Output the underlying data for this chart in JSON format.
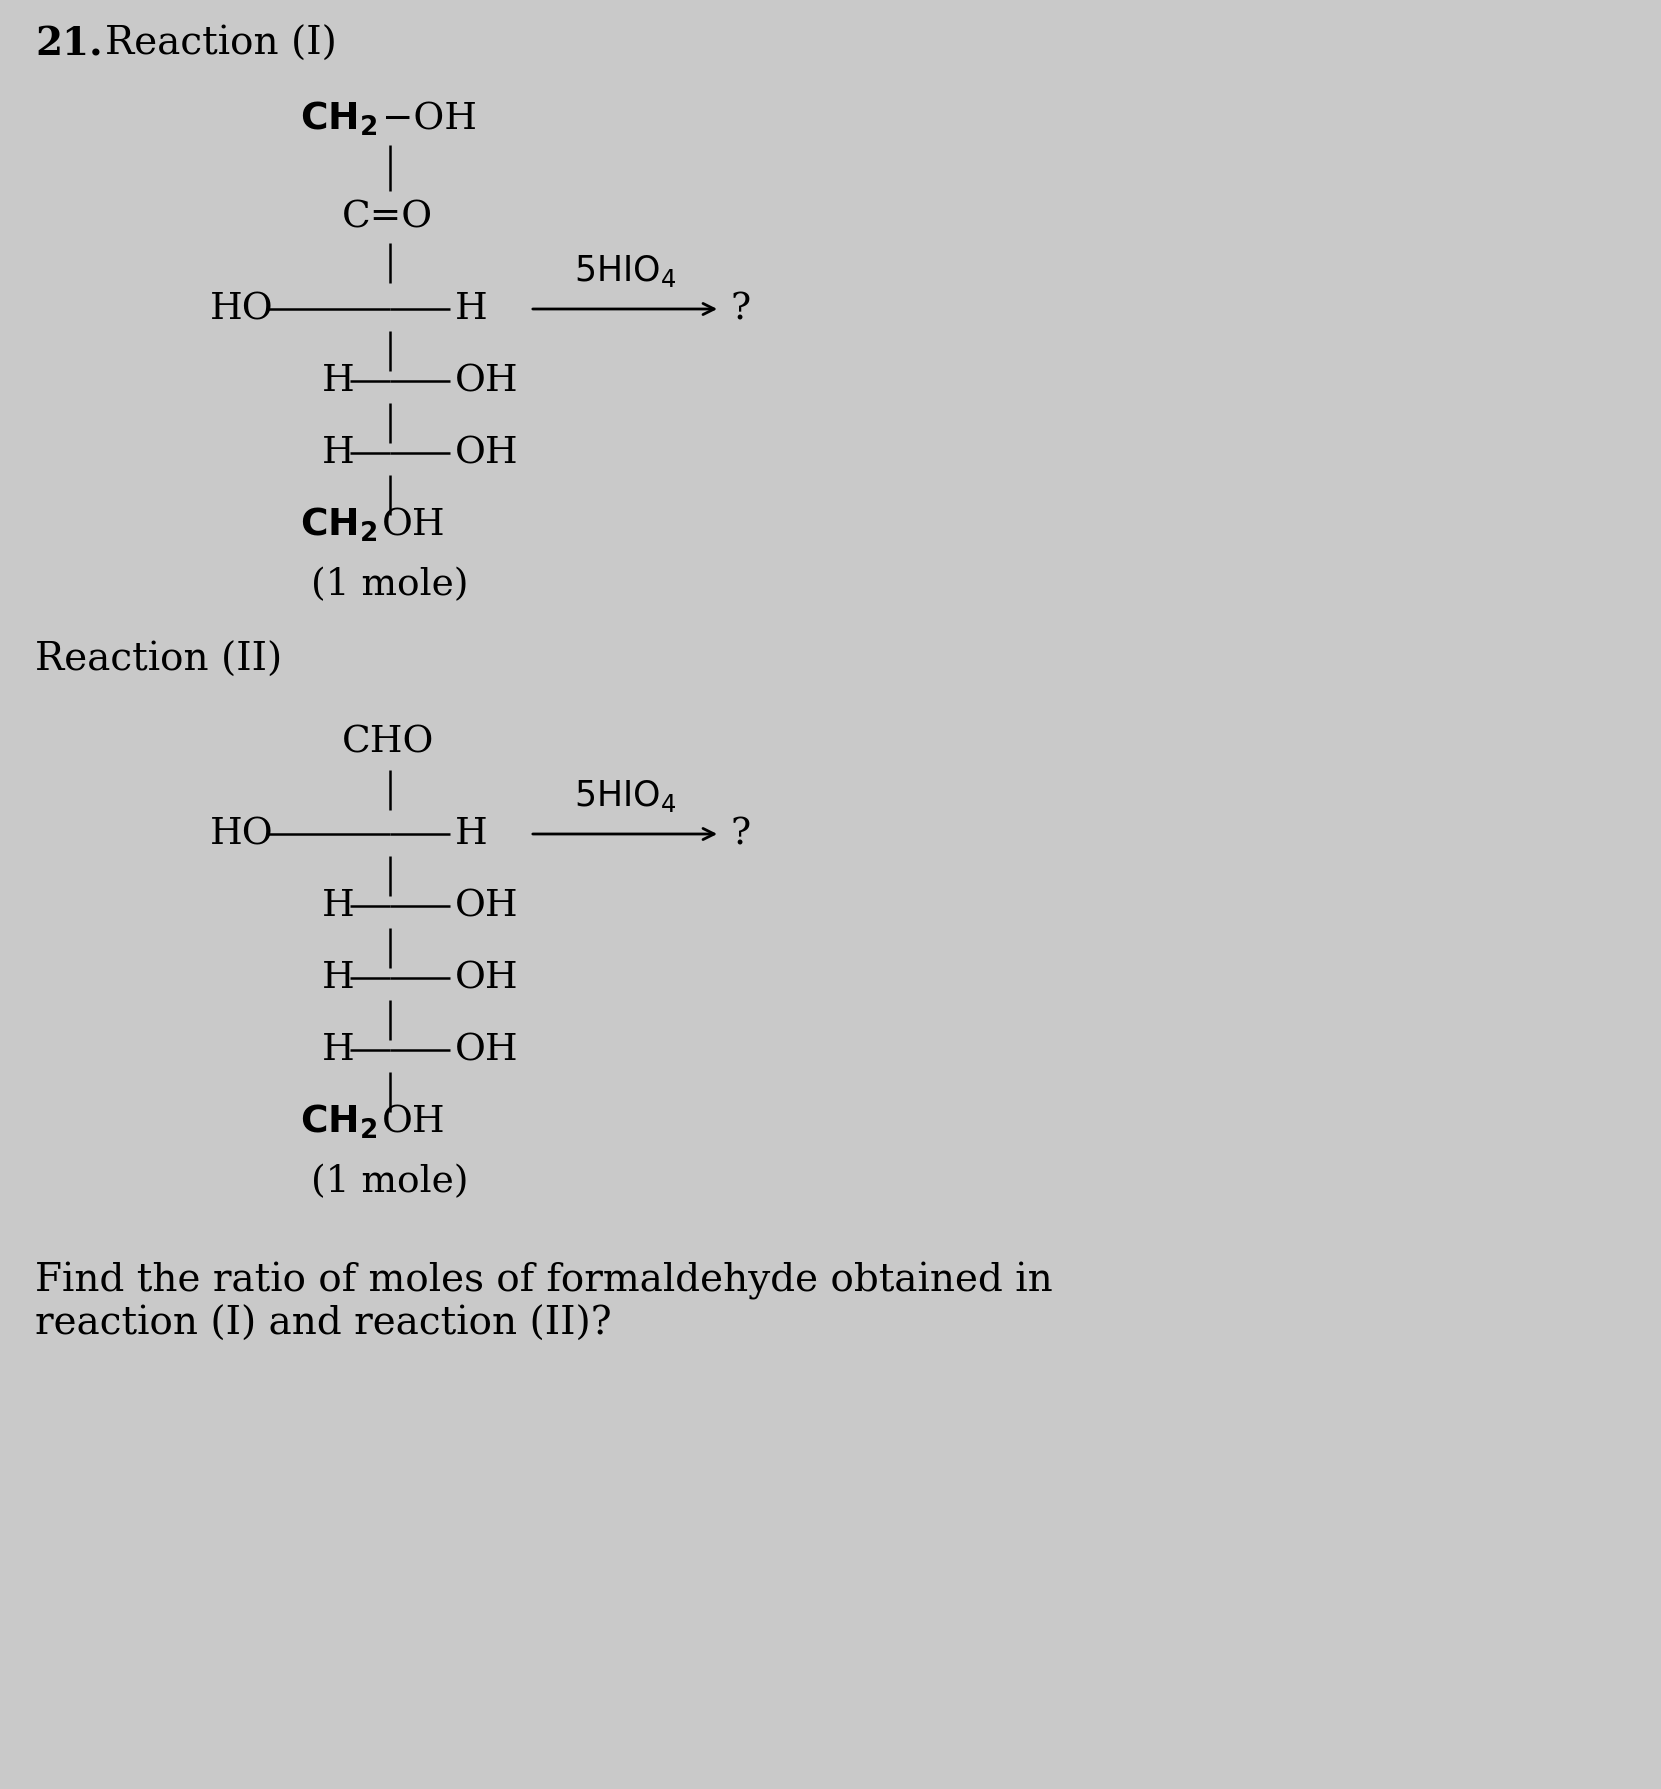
{
  "bg_color": "#c9c9c9",
  "title_num": "21.",
  "reaction1_label": "Reaction (I)",
  "reaction2_label": "Reaction (II)",
  "question_text": "Find the ratio of moles of formaldehyde obtained in\nreaction (I) and reaction (II)?",
  "fs_header": 28,
  "fs_body": 27,
  "fs_chem": 27,
  "fs_sub": 20
}
